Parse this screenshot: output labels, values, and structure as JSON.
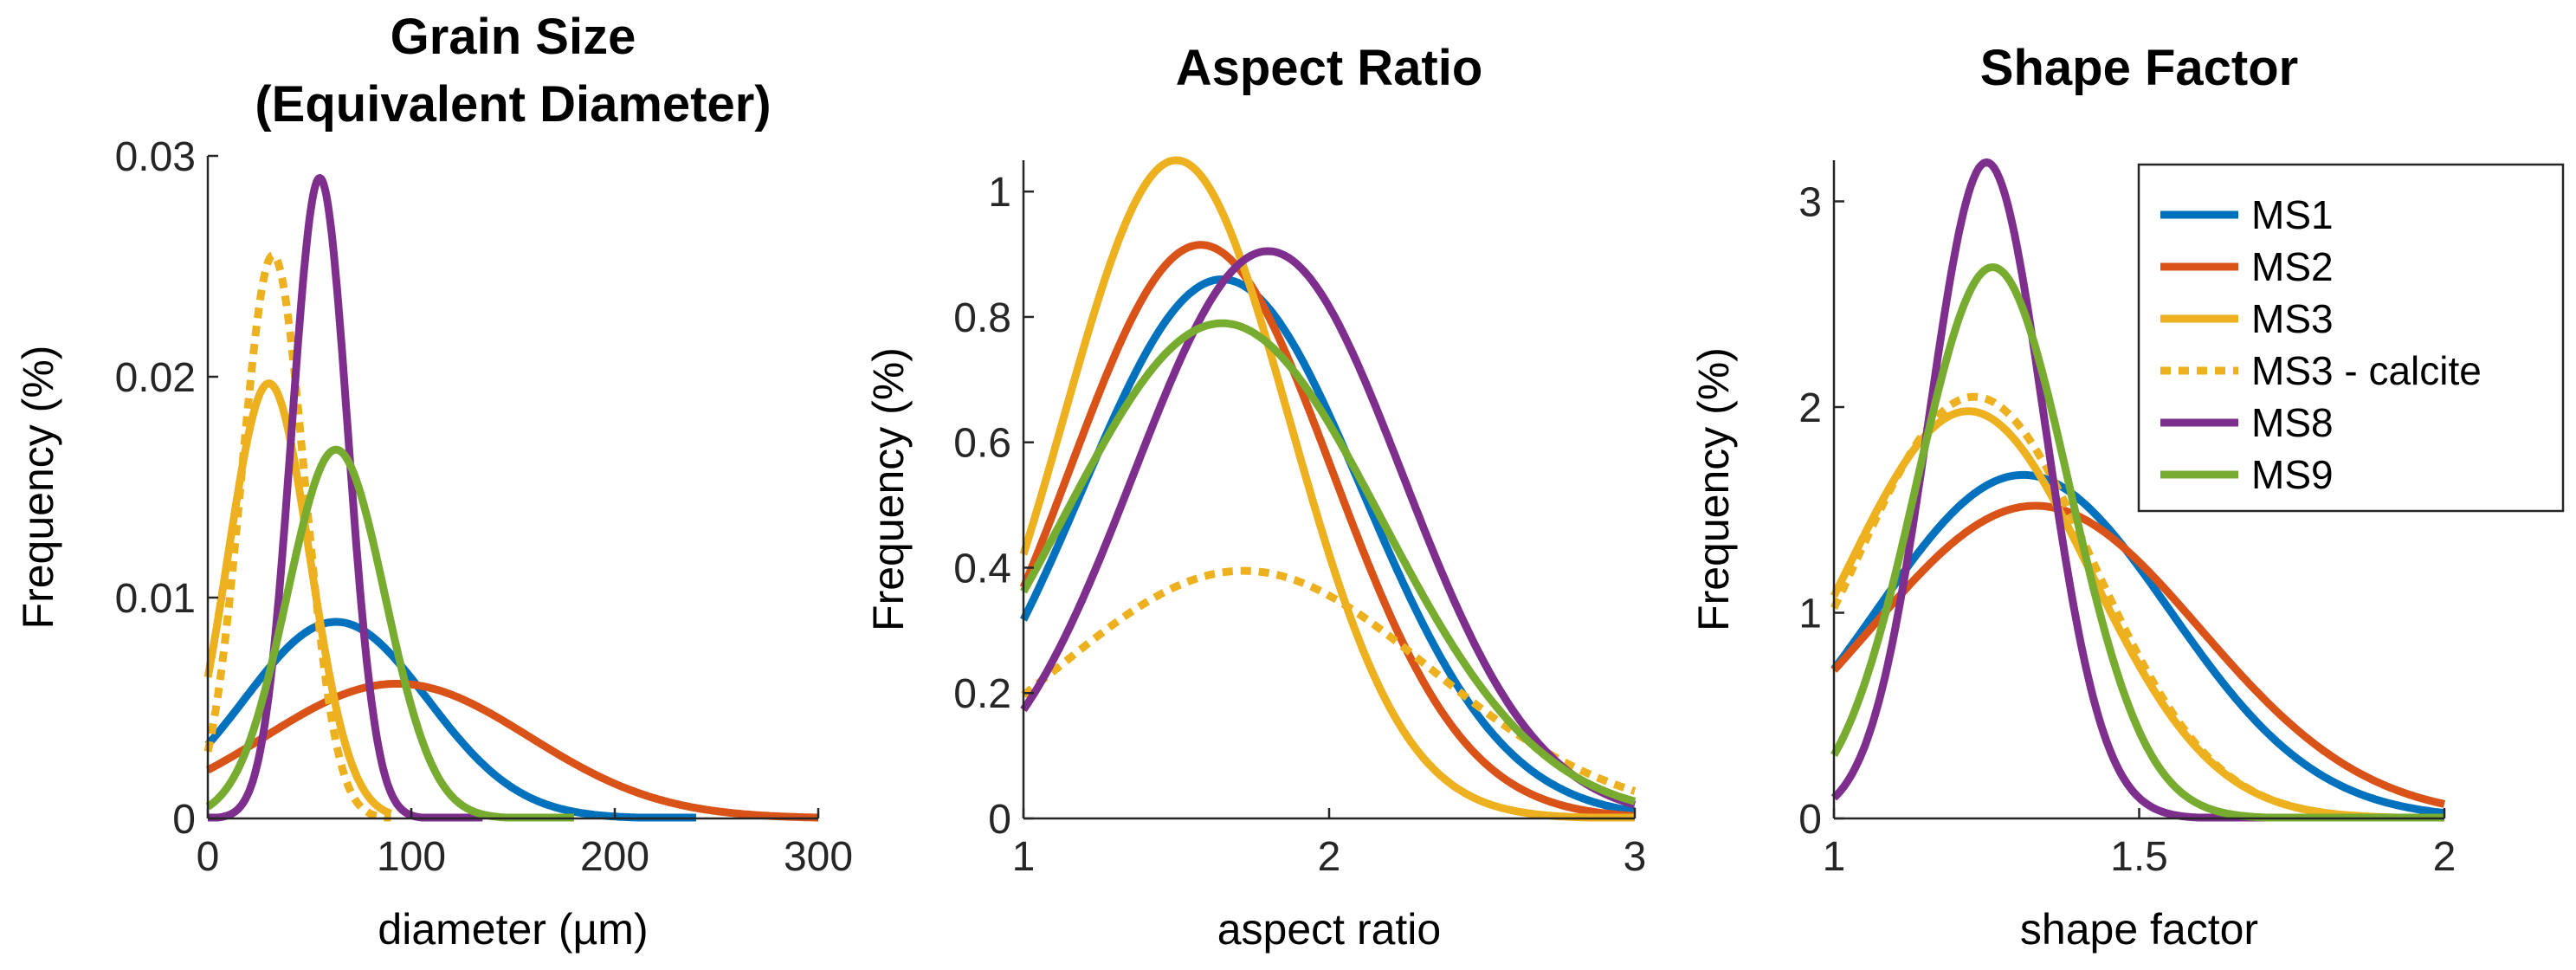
{
  "colors": {
    "MS1": "#0072BD",
    "MS2": "#D95319",
    "MS3": "#EDB120",
    "MS3 - calcite": "#EDB120",
    "MS8": "#7E2F8E",
    "MS9": "#77AC30"
  },
  "legend": {
    "entries": [
      {
        "label": "MS1",
        "style": "solid"
      },
      {
        "label": "MS2",
        "style": "solid"
      },
      {
        "label": "MS3",
        "style": "solid"
      },
      {
        "label": "MS3 - calcite",
        "style": "dotted"
      },
      {
        "label": "MS8",
        "style": "solid"
      },
      {
        "label": "MS9",
        "style": "solid"
      }
    ],
    "placement": "top-right of third panel"
  },
  "chart_data": [
    {
      "type": "line",
      "title_lines": [
        "Grain Size",
        "(Equivalent Diameter)"
      ],
      "xlabel": "diameter (µm)",
      "ylabel": "Frequency (%)",
      "xlim": [
        0,
        300
      ],
      "ylim": [
        0,
        0.03
      ],
      "xticks": [
        0,
        100,
        200,
        300
      ],
      "xtick_labels": [
        "0",
        "100",
        "200",
        "300"
      ],
      "yticks": [
        0,
        0.01,
        0.02,
        0.03
      ],
      "ytick_labels": [
        "0",
        "0.01",
        "0.02",
        "0.03"
      ],
      "distribution": "normal",
      "series": [
        {
          "name": "MS1",
          "mean": 63,
          "sd": 45,
          "peak": 0.0089,
          "x_range": [
            0,
            240
          ],
          "style": "solid"
        },
        {
          "name": "MS2",
          "mean": 93,
          "sd": 65,
          "peak": 0.0061,
          "x_range": [
            0,
            300
          ],
          "style": "solid"
        },
        {
          "name": "MS3",
          "mean": 30,
          "sd": 20,
          "peak": 0.0197,
          "x_range": [
            0,
            90
          ],
          "style": "solid"
        },
        {
          "name": "MS3 - calcite",
          "mean": 32,
          "sd": 15.5,
          "peak": 0.0255,
          "x_range": [
            0,
            90
          ],
          "style": "dotted"
        },
        {
          "name": "MS8",
          "mean": 55,
          "sd": 13.8,
          "peak": 0.029,
          "x_range": [
            0,
            135
          ],
          "style": "solid"
        },
        {
          "name": "MS9",
          "mean": 63,
          "sd": 24,
          "peak": 0.0167,
          "x_range": [
            0,
            180
          ],
          "style": "solid"
        }
      ]
    },
    {
      "type": "line",
      "title_lines": [
        "Aspect Ratio"
      ],
      "xlabel": "aspect ratio",
      "ylabel": "Frequency (%)",
      "xlim": [
        1,
        3
      ],
      "ylim": [
        0,
        1.05
      ],
      "xticks": [
        1,
        2,
        3
      ],
      "xtick_labels": [
        "1",
        "2",
        "3"
      ],
      "yticks": [
        0,
        0.2,
        0.4,
        0.6,
        0.8,
        1
      ],
      "ytick_labels": [
        "0",
        "0.2",
        "0.4",
        "0.6",
        "0.8",
        "1"
      ],
      "distribution": "normal",
      "series": [
        {
          "name": "MS1",
          "mean": 1.65,
          "sd": 0.46,
          "peak": 0.86,
          "x_range": [
            1,
            3
          ],
          "style": "solid"
        },
        {
          "name": "MS2",
          "mean": 1.58,
          "sd": 0.43,
          "peak": 0.915,
          "x_range": [
            1,
            3
          ],
          "style": "solid"
        },
        {
          "name": "MS3",
          "mean": 1.5,
          "sd": 0.37,
          "peak": 1.05,
          "x_range": [
            1,
            3
          ],
          "style": "solid"
        },
        {
          "name": "MS3 - calcite",
          "mean": 1.72,
          "sd": 0.61,
          "peak": 0.395,
          "x_range": [
            1,
            3
          ],
          "style": "dotted"
        },
        {
          "name": "MS8",
          "mean": 1.8,
          "sd": 0.44,
          "peak": 0.905,
          "x_range": [
            1,
            3
          ],
          "style": "solid"
        },
        {
          "name": "MS9",
          "mean": 1.65,
          "sd": 0.52,
          "peak": 0.79,
          "x_range": [
            1,
            3
          ],
          "style": "solid"
        }
      ]
    },
    {
      "type": "line",
      "title_lines": [
        "Shape Factor"
      ],
      "xlabel": "shape factor",
      "ylabel": "Frequency (%)",
      "xlim": [
        1,
        2
      ],
      "ylim": [
        0,
        3.2
      ],
      "xticks": [
        1,
        1.5,
        2
      ],
      "xtick_labels": [
        "1",
        "1.5",
        "2"
      ],
      "yticks": [
        0,
        1,
        2,
        3
      ],
      "ytick_labels": [
        "0",
        "1",
        "2",
        "3"
      ],
      "distribution": "normal",
      "series": [
        {
          "name": "MS1",
          "mean": 1.31,
          "sd": 0.24,
          "peak": 1.67,
          "x_range": [
            1,
            2
          ],
          "style": "solid"
        },
        {
          "name": "MS2",
          "mean": 1.33,
          "sd": 0.27,
          "peak": 1.52,
          "x_range": [
            1,
            2
          ],
          "style": "solid"
        },
        {
          "name": "MS3",
          "mean": 1.22,
          "sd": 0.2,
          "peak": 1.98,
          "x_range": [
            1,
            2
          ],
          "style": "solid"
        },
        {
          "name": "MS3 - calcite",
          "mean": 1.23,
          "sd": 0.195,
          "peak": 2.05,
          "x_range": [
            1,
            2
          ],
          "style": "dotted"
        },
        {
          "name": "MS8",
          "mean": 1.25,
          "sd": 0.095,
          "peak": 3.19,
          "x_range": [
            1,
            2
          ],
          "style": "solid"
        },
        {
          "name": "MS9",
          "mean": 1.26,
          "sd": 0.125,
          "peak": 2.68,
          "x_range": [
            1,
            2
          ],
          "style": "solid"
        }
      ]
    }
  ]
}
